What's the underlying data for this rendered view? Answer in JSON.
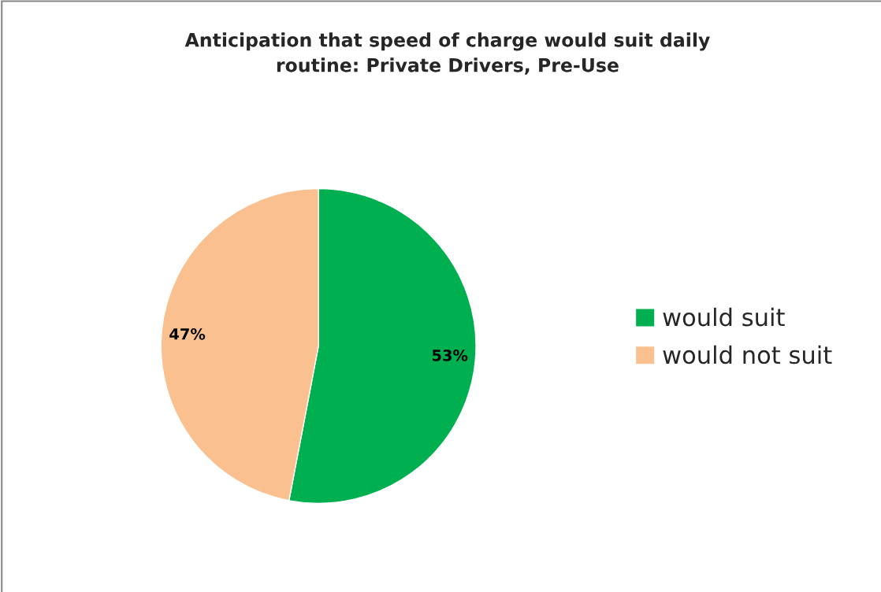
{
  "chart_data": {
    "type": "pie",
    "title": "Anticipation that speed of charge would suit daily\nroutine: Private Drivers, Pre-Use",
    "categories": [
      "would suit",
      "would not suit"
    ],
    "values": [
      53,
      47
    ],
    "colors": [
      "#00b050",
      "#fac090"
    ],
    "value_labels": [
      "53%",
      "47%"
    ],
    "legend": "right"
  }
}
